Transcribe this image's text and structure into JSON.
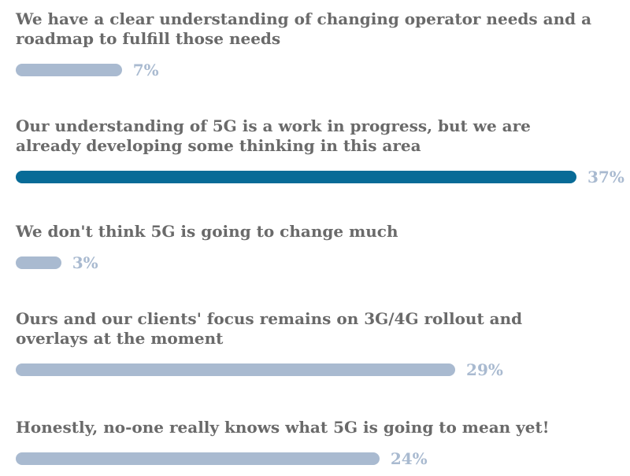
{
  "chart_data": {
    "type": "bar",
    "orientation": "horizontal",
    "categories": [
      "We have a clear understanding of changing operator needs and a roadmap to fulfill those needs",
      "Our understanding of 5G is a work in progress, but we are already developing some thinking in this area",
      "We don't think 5G is going to change much",
      "Ours and our clients' focus remains on 3G/4G rollout and overlays at the moment",
      "Honestly, no-one really knows what 5G is going to mean yet!"
    ],
    "values": [
      7,
      37,
      3,
      29,
      24
    ],
    "value_labels": [
      "7%",
      "37%",
      "3%",
      "29%",
      "24%"
    ],
    "unit": "%",
    "xlim": [
      0,
      37
    ],
    "highlight_index": 1,
    "grid": false,
    "colors": {
      "bar_default": "#a9bad0",
      "bar_highlight": "#086b97",
      "label_text": "#6a6a6a",
      "value_text": "#a9bad0"
    }
  }
}
